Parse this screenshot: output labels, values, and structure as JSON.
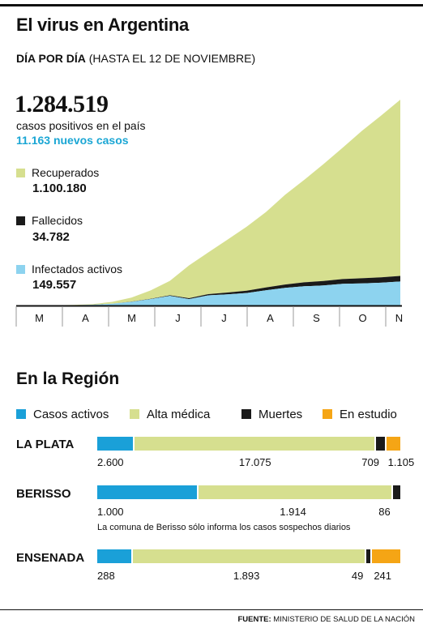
{
  "header": {
    "title": "El virus en Argentina",
    "subtitle_bold": "DÍA POR DÍA",
    "subtitle_rest": "(HASTA EL 12 DE NOVIEMBRE)"
  },
  "summary": {
    "total": "1.284.519",
    "total_label": "casos positivos en el país",
    "new_cases": "11.163 nuevos casos"
  },
  "legend": [
    {
      "label": "Recuperados",
      "value": "1.100.180",
      "color": "#d6df8f"
    },
    {
      "label": "Fallecidos",
      "value": "34.782",
      "color": "#1a1a1a"
    },
    {
      "label": "Infectados activos",
      "value": "149.557",
      "color": "#8dd3ef"
    }
  ],
  "chart_data": [
    {
      "type": "area",
      "stacked": true,
      "x_ticks": [
        "M",
        "A",
        "M",
        "J",
        "J",
        "A",
        "S",
        "O",
        "N"
      ],
      "x_label_note": "months March to November",
      "series": [
        {
          "name": "Infectados activos",
          "color": "#8dd3ef",
          "values": [
            0,
            100,
            800,
            2000,
            4500,
            11000,
            23000,
            40000,
            60000,
            40000,
            63000,
            70000,
            78000,
            95000,
            110000,
            120000,
            125000,
            135000,
            138000,
            142000,
            149557
          ]
        },
        {
          "name": "Fallecidos",
          "color": "#1a1a1a",
          "values": [
            0,
            10,
            100,
            200,
            400,
            700,
            1200,
            2000,
            3500,
            5500,
            8000,
            11000,
            14000,
            17500,
            21000,
            24500,
            27500,
            30000,
            32000,
            33500,
            34782
          ]
        },
        {
          "name": "Recuperados",
          "color": "#d6df8f",
          "values": [
            0,
            50,
            500,
            1500,
            4000,
            11000,
            25000,
            52000,
            90000,
            205000,
            260000,
            330000,
            400000,
            470000,
            560000,
            640000,
            730000,
            820000,
            920000,
            1010000,
            1100180
          ]
        }
      ],
      "total_last": 1284519
    },
    {
      "type": "bar",
      "stacked": true,
      "title": "En la Región",
      "categories": [
        "LA PLATA",
        "BERISSO",
        "ENSENADA"
      ],
      "series": [
        {
          "name": "Casos activos",
          "color": "#1aa0d8",
          "values": [
            2600,
            1000,
            288
          ],
          "labels": [
            "2.600",
            "1.000",
            "288"
          ]
        },
        {
          "name": "Alta médica",
          "color": "#d6df8f",
          "values": [
            17075,
            1914,
            1893
          ],
          "labels": [
            "17.075",
            "1.914",
            "1.893"
          ]
        },
        {
          "name": "Muertes",
          "color": "#1a1a1a",
          "values": [
            709,
            86,
            49
          ],
          "labels": [
            "709",
            "86",
            "49"
          ]
        },
        {
          "name": "En estudio",
          "color": "#f5a515",
          "values": [
            1105,
            0,
            241
          ],
          "labels": [
            "1.105",
            "",
            "241"
          ]
        }
      ],
      "note": "La comuna de Berisso sólo informa los casos sospechos diarios"
    }
  ],
  "region": {
    "title": "En la Región",
    "note": "La comuna de Berisso sólo informa los casos sospechos diarios"
  },
  "footer": {
    "source_bold": "FUENTE:",
    "source_rest": "MINISTERIO DE SALUD DE LA NACIÓN"
  }
}
